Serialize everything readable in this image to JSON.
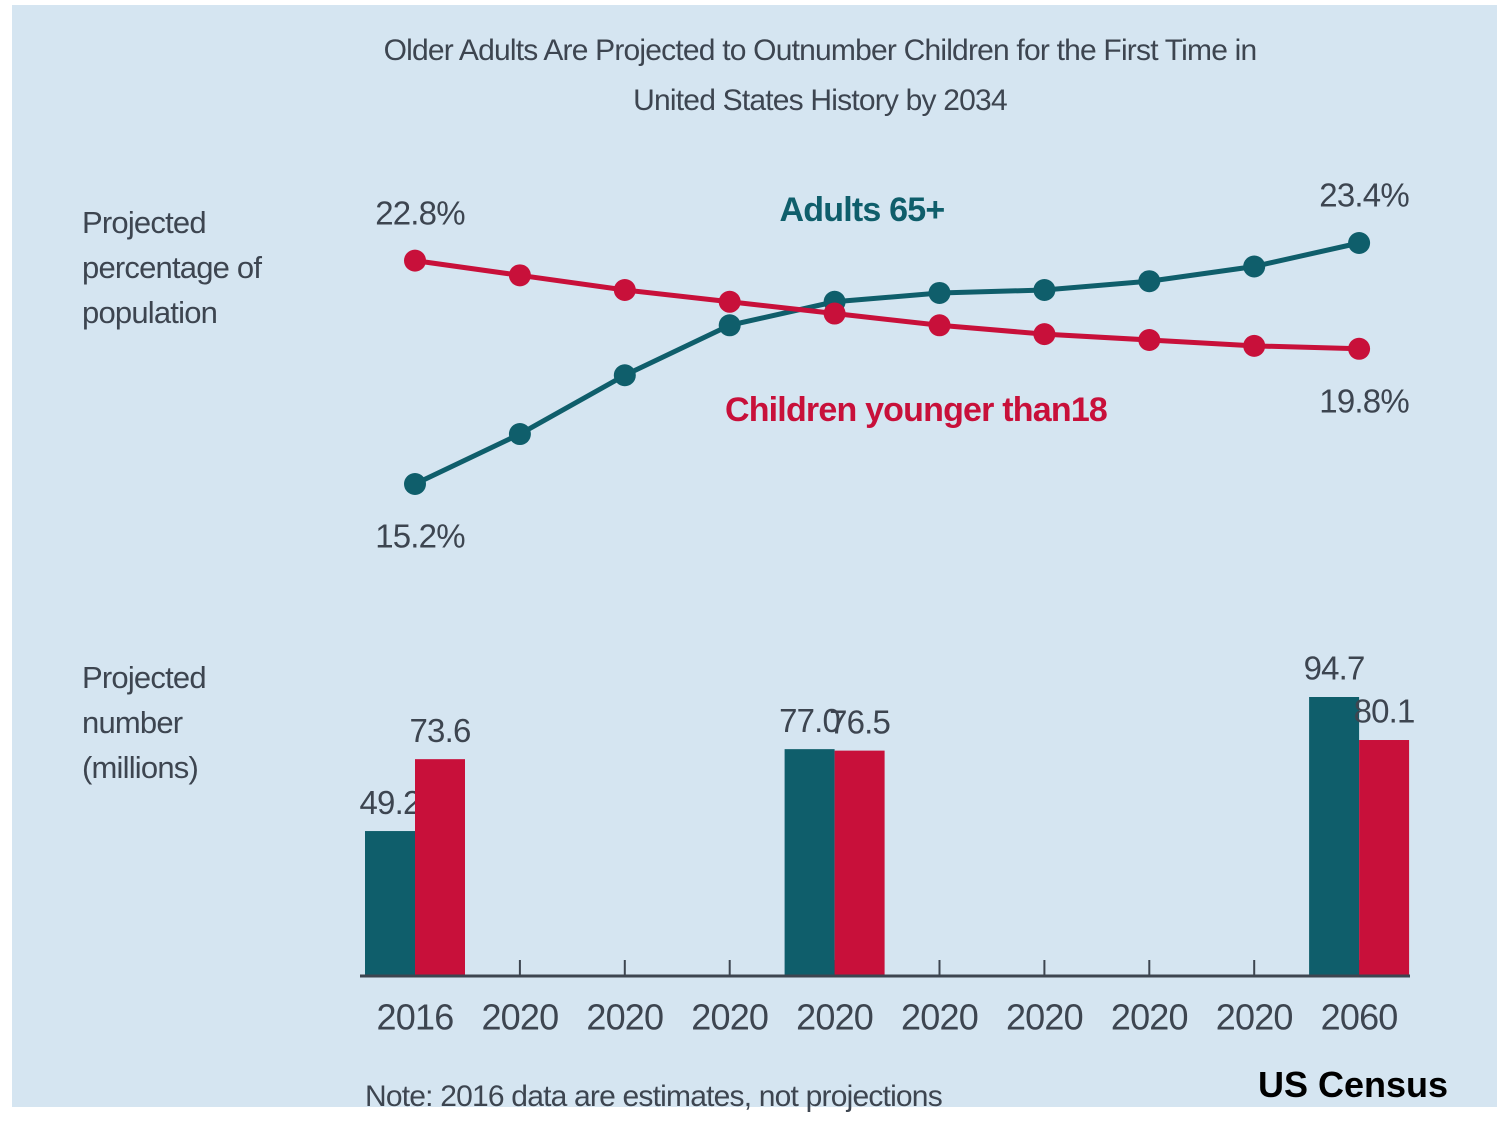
{
  "chart_data": [
    {
      "type": "line",
      "title": "Older Adults Are Projected to Outnumber Children for the First Time in United States History by 2034",
      "ylabel": "Projected percentage of population",
      "series": [
        {
          "name": "Adults 65+",
          "color": "#0f5e6b",
          "values": [
            15.2,
            16.9,
            18.9,
            20.6,
            21.4,
            21.7,
            21.8,
            22.1,
            22.6,
            23.4
          ],
          "value_labels": [
            "15.2%",
            null,
            null,
            null,
            null,
            null,
            null,
            null,
            null,
            "23.4%"
          ]
        },
        {
          "name": "Children younger than18",
          "color": "#c8103a",
          "values": [
            22.8,
            22.3,
            21.8,
            21.4,
            21.0,
            20.6,
            20.3,
            20.1,
            19.9,
            19.8
          ],
          "value_labels": [
            "22.8%",
            null,
            null,
            null,
            null,
            null,
            null,
            null,
            null,
            "19.8%"
          ]
        }
      ]
    },
    {
      "type": "bar",
      "ylabel": "Projected number (millions)",
      "categories": [
        "2016",
        "2020",
        "2020",
        "2020",
        "2020",
        "2020",
        "2020",
        "2020",
        "2020",
        "2060"
      ],
      "series": [
        {
          "color": "#0f5e6b",
          "values": [
            49.2,
            null,
            null,
            null,
            77.0,
            null,
            null,
            null,
            null,
            94.7
          ],
          "value_labels": [
            "49.2",
            null,
            null,
            null,
            "77.0",
            null,
            null,
            null,
            null,
            "94.7"
          ]
        },
        {
          "color": "#c8103a",
          "values": [
            73.6,
            null,
            null,
            null,
            76.5,
            null,
            null,
            null,
            null,
            80.1
          ],
          "value_labels": [
            "73.6",
            null,
            null,
            null,
            "76.5",
            null,
            null,
            null,
            null,
            "80.1"
          ]
        }
      ]
    }
  ],
  "note": "Note: 2016 data are estimates, not projections",
  "source": "US Census"
}
